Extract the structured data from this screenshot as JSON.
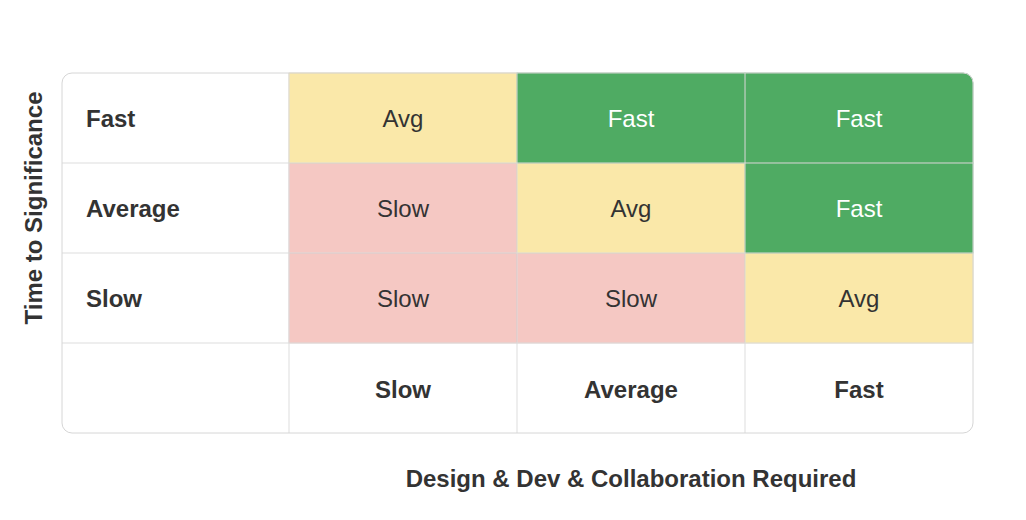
{
  "chart_data": {
    "type": "heatmap",
    "x_label": "Design & Dev & Collaboration Required",
    "y_label": "Time to Significance",
    "x_categories": [
      "Slow",
      "Average",
      "Fast"
    ],
    "y_categories": [
      "Slow",
      "Average",
      "Fast"
    ],
    "cells": [
      {
        "x": "Slow",
        "y": "Slow",
        "label": "Slow"
      },
      {
        "x": "Average",
        "y": "Slow",
        "label": "Slow"
      },
      {
        "x": "Fast",
        "y": "Slow",
        "label": "Avg"
      },
      {
        "x": "Slow",
        "y": "Average",
        "label": "Slow"
      },
      {
        "x": "Average",
        "y": "Average",
        "label": "Avg"
      },
      {
        "x": "Fast",
        "y": "Average",
        "label": "Fast"
      },
      {
        "x": "Slow",
        "y": "Fast",
        "label": "Avg"
      },
      {
        "x": "Average",
        "y": "Fast",
        "label": "Fast"
      },
      {
        "x": "Fast",
        "y": "Fast",
        "label": "Fast"
      }
    ],
    "colors": [
      "#f5c8c3",
      "#f5c8c3",
      "#fae8a9",
      "#f5c8c3",
      "#fae8a9",
      "#4fab63",
      "#fae8a9",
      "#4fab63",
      "#4fab63"
    ],
    "grid": true
  }
}
